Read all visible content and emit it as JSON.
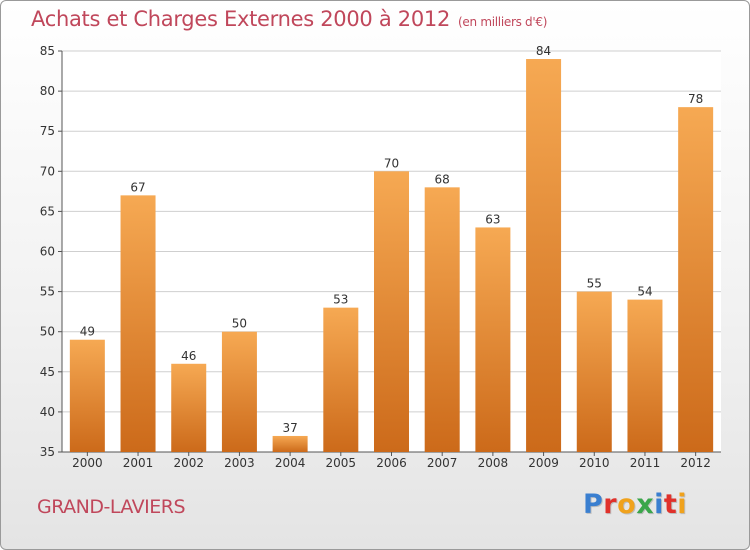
{
  "title": "Achats et Charges Externes 2000 à 2012",
  "unit": "(en milliers d'€)",
  "commune": "GRAND-LAVIERS",
  "logo": {
    "text": "Proxiti",
    "letters": [
      {
        "char": "P",
        "color": "#3a7fd0"
      },
      {
        "char": "r",
        "color": "#e0312b"
      },
      {
        "char": "o",
        "color": "#f0a21c"
      },
      {
        "char": "x",
        "color": "#3aa64a"
      },
      {
        "char": "i",
        "color": "#3a7fd0"
      },
      {
        "char": "t",
        "color": "#e0312b"
      },
      {
        "char": "i",
        "color": "#f0a21c"
      }
    ]
  },
  "colors": {
    "title": "#c0475b",
    "bar_top": "#f6a953",
    "bar_bottom": "#cc6a1a",
    "grid": "#cfcfcf",
    "axis": "#555555"
  },
  "chart_data": {
    "type": "bar",
    "categories": [
      "2000",
      "2001",
      "2002",
      "2003",
      "2004",
      "2005",
      "2006",
      "2007",
      "2008",
      "2009",
      "2010",
      "2011",
      "2012"
    ],
    "values": [
      49,
      67,
      46,
      50,
      37,
      53,
      70,
      68,
      63,
      84,
      55,
      54,
      78
    ],
    "ylim": [
      35,
      85
    ],
    "yticks": [
      35,
      40,
      45,
      50,
      55,
      60,
      65,
      70,
      75,
      80,
      85
    ],
    "grid": true,
    "data_labels": true
  }
}
